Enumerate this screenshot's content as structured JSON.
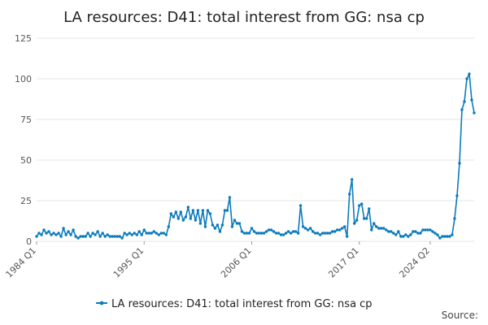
{
  "chart_data": {
    "type": "line",
    "title": "LA resources: D41: total interest from GG: nsa cp",
    "xlabel": "",
    "ylabel": "",
    "ylim": [
      0,
      125
    ],
    "yticks": [
      0,
      25,
      50,
      75,
      100,
      125
    ],
    "xtick_labels": [
      "1984 Q1",
      "1995 Q1",
      "2006 Q1",
      "2017 Q1",
      "2024 Q2"
    ],
    "x_start": "1984 Q1",
    "x_end": "2024 Q2",
    "grid": true,
    "legend_position": "bottom",
    "source_label": "Source:",
    "series": [
      {
        "name": "LA resources: D41: total interest from GG: nsa cp",
        "color": "#0b7bbd",
        "values": [
          3,
          5,
          4,
          7,
          5,
          6,
          4,
          5,
          4,
          5,
          3,
          8,
          4,
          6,
          4,
          7,
          3,
          2,
          3,
          3,
          3,
          5,
          3,
          5,
          4,
          6,
          3,
          5,
          3,
          4,
          3,
          3,
          3,
          3,
          3,
          2,
          5,
          4,
          5,
          4,
          5,
          4,
          6,
          4,
          7,
          5,
          5,
          5,
          6,
          5,
          4,
          5,
          5,
          4,
          9,
          17,
          15,
          18,
          14,
          18,
          13,
          15,
          21,
          14,
          19,
          13,
          19,
          11,
          19,
          9,
          19,
          17,
          10,
          8,
          10,
          6,
          10,
          19,
          19,
          27,
          9,
          13,
          11,
          11,
          6,
          5,
          5,
          5,
          8,
          6,
          5,
          5,
          5,
          5,
          6,
          7,
          7,
          6,
          5,
          5,
          4,
          4,
          5,
          6,
          5,
          6,
          6,
          5,
          22,
          9,
          8,
          7,
          8,
          6,
          5,
          5,
          4,
          5,
          5,
          5,
          5,
          6,
          6,
          7,
          7,
          8,
          9,
          3,
          29,
          38,
          11,
          13,
          22,
          23,
          14,
          14,
          20,
          7,
          11,
          9,
          8,
          8,
          8,
          7,
          6,
          6,
          5,
          4,
          6,
          3,
          3,
          4,
          3,
          4,
          6,
          6,
          5,
          5,
          7,
          7,
          7,
          7,
          6,
          5,
          4,
          2,
          3,
          3,
          3,
          3,
          4,
          14,
          28,
          48,
          81,
          86,
          100,
          103,
          87,
          79
        ]
      }
    ]
  }
}
